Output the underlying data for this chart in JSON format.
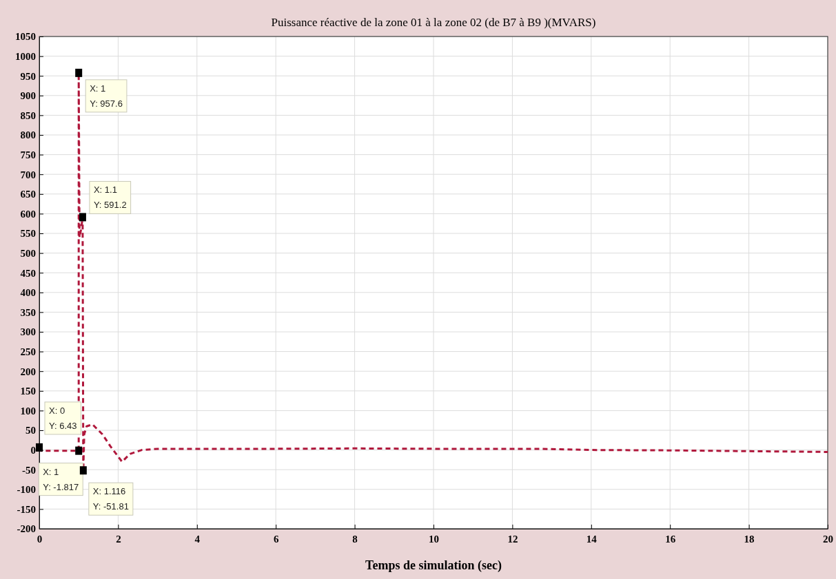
{
  "chart_data": {
    "type": "line",
    "title": "Puissance réactive de la zone 01 à la zone 02 (de B7 à B9 )(MVARS)",
    "xlabel": "Temps de simulation (sec)",
    "x": [
      0,
      0.05,
      0.5,
      1,
      1,
      1.02,
      1.06,
      1.1,
      1.1,
      1.116,
      1.14,
      1.2,
      1.35,
      1.6,
      1.8,
      2.1,
      2.3,
      2.6,
      3,
      4,
      6,
      8,
      10,
      12,
      12.7,
      14,
      16,
      18,
      19,
      20
    ],
    "series": [
      {
        "color": "#b0183c",
        "values": [
          6.43,
          -1.8,
          -1.8,
          -1.817,
          957.6,
          540,
          560,
          591.2,
          560,
          -51.81,
          40,
          60,
          65,
          40,
          10,
          -30,
          -10,
          0,
          3,
          3,
          3,
          4,
          3,
          3,
          3,
          0,
          -1,
          -3,
          -4,
          -5
        ]
      }
    ],
    "xlim": [
      0,
      20
    ],
    "xticks": [
      0,
      2,
      4,
      6,
      8,
      10,
      12,
      14,
      16,
      18,
      20
    ],
    "ylim": [
      -200,
      1050
    ],
    "yticks": [
      -200,
      -150,
      -100,
      -50,
      0,
      50,
      100,
      150,
      200,
      250,
      300,
      350,
      400,
      450,
      500,
      550,
      600,
      650,
      700,
      750,
      800,
      850,
      900,
      950,
      1000,
      1050
    ],
    "grid": true,
    "line_style": "dashed",
    "marker": "none",
    "annotations": [
      {
        "text": "X: 1\nY: 957.6",
        "x": 1,
        "y": 957.6
      },
      {
        "text": "X: 1.1\nY: 591.2",
        "x": 1.1,
        "y": 591.2
      },
      {
        "text": "X: 0\nY: 6.43",
        "x": 0,
        "y": 6.43
      },
      {
        "text": "X: 1\nY: -1.817",
        "x": 1,
        "y": -1.817
      },
      {
        "text": "X: 1.116\nY: -51.81",
        "x": 1.116,
        "y": -51.81
      }
    ]
  }
}
